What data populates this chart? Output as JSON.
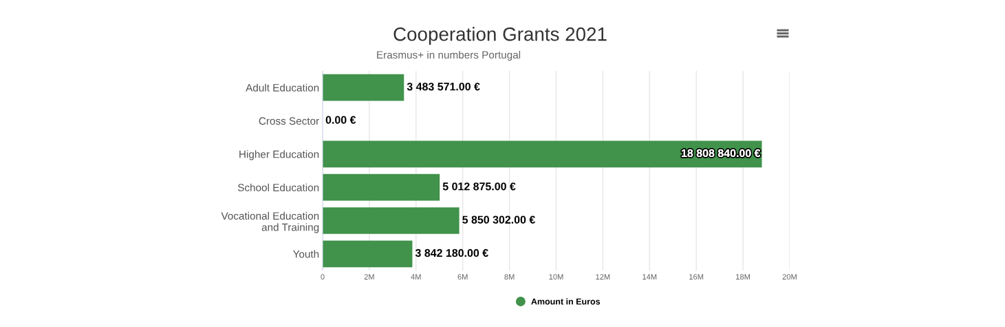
{
  "chart_data": {
    "type": "bar",
    "orientation": "horizontal",
    "title": "Cooperation Grants 2021",
    "subtitle": "Erasmus+ in numbers Portugal",
    "categories": [
      "Adult Education",
      "Cross Sector",
      "Higher Education",
      "School Education",
      "Vocational Education\nand Training",
      "Youth"
    ],
    "series": [
      {
        "name": "Amount in Euros",
        "color": "#41924b",
        "values": [
          3483571,
          0,
          18808840,
          5012875,
          5850302,
          3842180
        ],
        "value_labels": [
          "3 483 571.00 €",
          "0.00 €",
          "18 808 840.00 €",
          "5 012 875.00 €",
          "5 850 302.00 €",
          "3 842 180.00 €"
        ]
      }
    ],
    "xlim": [
      0,
      20000000
    ],
    "xticks": [
      0,
      {
        "value": 2000000,
        "label": "2M"
      },
      {
        "value": 4000000,
        "label": "4M"
      },
      {
        "value": 6000000,
        "label": "6M"
      },
      {
        "value": 8000000,
        "label": "8M"
      },
      {
        "value": 10000000,
        "label": "10M"
      },
      {
        "value": 12000000,
        "label": "12M"
      },
      {
        "value": 14000000,
        "label": "14M"
      },
      {
        "value": 16000000,
        "label": "16M"
      },
      {
        "value": 18000000,
        "label": "18M"
      },
      {
        "value": 20000000,
        "label": "20M"
      }
    ],
    "grid": "x",
    "legend": "bottom"
  }
}
